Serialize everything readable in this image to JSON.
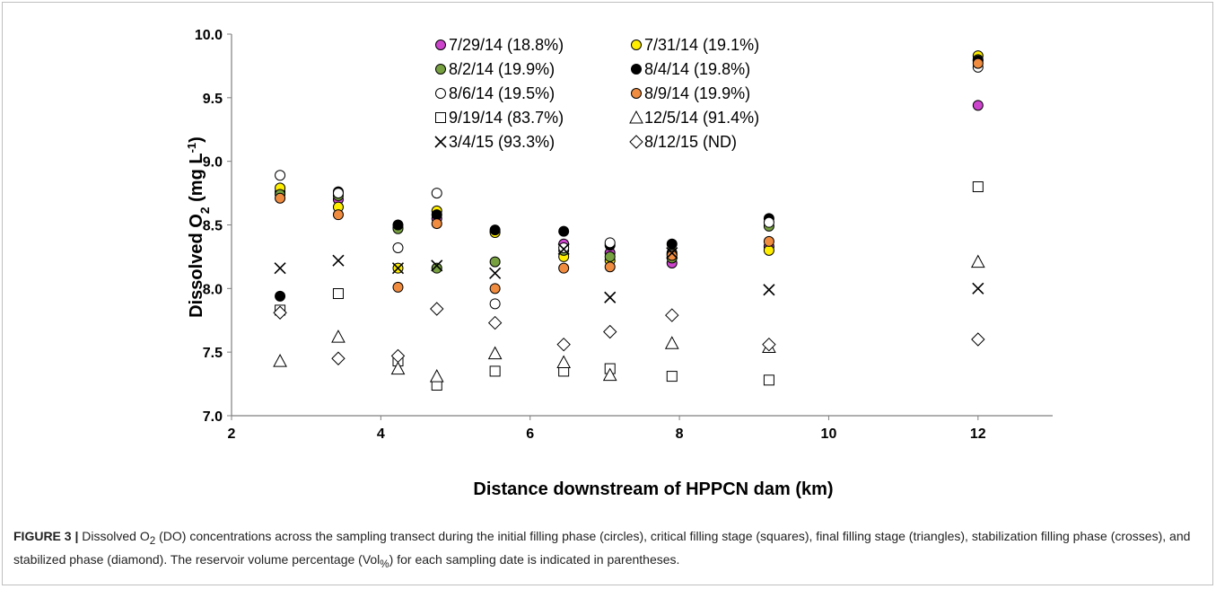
{
  "chart_data": {
    "type": "scatter",
    "xlabel": "Distance downstream of HPPCN dam (km)",
    "ylabel_main": "Dissolved O",
    "ylabel_sub": "2",
    "ylabel_unit_open": " (mg L",
    "ylabel_sup": "-1",
    "ylabel_close": ")",
    "xlim": [
      2,
      13
    ],
    "ylim": [
      7.0,
      10.0
    ],
    "xticks": [
      "2",
      "4",
      "6",
      "8",
      "10",
      "12"
    ],
    "xtick_values": [
      2,
      4,
      6,
      8,
      10,
      12
    ],
    "yticks": [
      "7.0",
      "7.5",
      "8.0",
      "8.5",
      "9.0",
      "9.5",
      "10.0"
    ],
    "ytick_values": [
      7.0,
      7.5,
      8.0,
      8.5,
      9.0,
      9.5,
      10.0
    ],
    "grid": false,
    "legend_position": "top",
    "series": [
      {
        "name": "7/29/14 (18.8%)",
        "marker": "circle",
        "fill": "#cc44cc",
        "x": [
          2.65,
          3.43,
          4.23,
          4.75,
          5.53,
          6.45,
          7.07,
          7.9,
          9.2,
          12.0
        ],
        "y": [
          8.76,
          8.7,
          8.48,
          8.55,
          8.45,
          8.35,
          8.28,
          8.2,
          8.33,
          9.44
        ]
      },
      {
        "name": "7/31/14 (19.1%)",
        "marker": "circle",
        "fill": "#ffee00",
        "x": [
          2.65,
          3.43,
          4.23,
          4.75,
          5.53,
          6.45,
          7.07,
          7.9,
          9.2,
          12.0
        ],
        "y": [
          8.79,
          8.64,
          8.16,
          8.61,
          8.44,
          8.25,
          8.22,
          8.28,
          8.3,
          9.83
        ]
      },
      {
        "name": "8/2/14 (19.9%)",
        "marker": "circle",
        "fill": "#77a040",
        "x": [
          2.65,
          3.43,
          4.23,
          4.75,
          5.53,
          6.45,
          7.07,
          7.9,
          9.2,
          12.0
        ],
        "y": [
          8.74,
          8.73,
          8.47,
          8.16,
          8.21,
          8.3,
          8.25,
          8.24,
          8.49,
          9.8
        ]
      },
      {
        "name": "8/4/14 (19.8%)",
        "marker": "circle",
        "fill": "#000000",
        "x": [
          2.65,
          3.43,
          4.23,
          4.75,
          5.53,
          6.45,
          7.07,
          7.9,
          9.2,
          12.0
        ],
        "y": [
          7.94,
          8.76,
          8.5,
          8.58,
          8.46,
          8.45,
          8.34,
          8.35,
          8.55,
          9.79
        ]
      },
      {
        "name": "8/6/14 (19.5%)",
        "marker": "circle",
        "fill": "#ffffff",
        "x": [
          2.65,
          3.43,
          4.23,
          4.75,
          5.53,
          6.45,
          7.07,
          7.9,
          9.2,
          12.0
        ],
        "y": [
          8.89,
          8.75,
          8.32,
          8.75,
          7.88,
          8.32,
          8.36,
          8.27,
          8.52,
          9.74
        ]
      },
      {
        "name": "8/9/14 (19.9%)",
        "marker": "circle",
        "fill": "#f08c40",
        "x": [
          2.65,
          3.43,
          4.23,
          4.75,
          5.53,
          6.45,
          7.07,
          7.9,
          9.2,
          12.0
        ],
        "y": [
          8.71,
          8.58,
          8.01,
          8.51,
          8.0,
          8.16,
          8.17,
          8.26,
          8.37,
          9.77
        ]
      },
      {
        "name": "9/19/14 (83.7%)",
        "marker": "square",
        "fill": "#ffffff",
        "x": [
          2.65,
          3.43,
          4.23,
          4.75,
          5.53,
          6.45,
          7.07,
          7.9,
          9.2,
          12.0
        ],
        "y": [
          7.83,
          7.96,
          7.43,
          7.24,
          7.35,
          7.35,
          7.37,
          7.31,
          7.28,
          8.8
        ]
      },
      {
        "name": "12/5/14 (91.4%)",
        "marker": "triangle",
        "fill": "#ffffff",
        "x": [
          2.65,
          3.43,
          4.23,
          4.75,
          5.53,
          6.45,
          7.07,
          7.9,
          9.2,
          12.0
        ],
        "y": [
          7.43,
          7.62,
          7.37,
          7.31,
          7.49,
          7.42,
          7.32,
          7.57,
          7.54,
          8.21
        ]
      },
      {
        "name": "3/4/15 (93.3%)",
        "marker": "cross",
        "fill": "#000000",
        "x": [
          2.65,
          3.43,
          4.23,
          4.75,
          5.53,
          6.45,
          7.07,
          7.9,
          9.2,
          12.0
        ],
        "y": [
          8.16,
          8.22,
          8.16,
          8.18,
          8.12,
          8.31,
          7.93,
          8.28,
          7.99,
          8.0
        ]
      },
      {
        "name": "8/12/15 (ND)",
        "marker": "diamond",
        "fill": "#ffffff",
        "x": [
          2.65,
          3.43,
          4.23,
          4.75,
          5.53,
          6.45,
          7.07,
          7.9,
          9.2,
          12.0
        ],
        "y": [
          7.81,
          7.45,
          7.47,
          7.84,
          7.73,
          7.56,
          7.66,
          7.79,
          7.56,
          7.6
        ]
      }
    ]
  },
  "caption": {
    "lead": "FIGURE 3 |",
    "text_a": " Dissolved O",
    "sub": "2",
    "text_b": " (DO) concentrations across the sampling transect during the initial filling phase (circles), critical filling stage (squares), final filling stage (triangles), stabilization filling phase (crosses), and stabilized phase (diamond). The reservoir volume percentage (Vol",
    "vol_sub": "%",
    "text_c": ") for each sampling date is indicated in parentheses."
  }
}
